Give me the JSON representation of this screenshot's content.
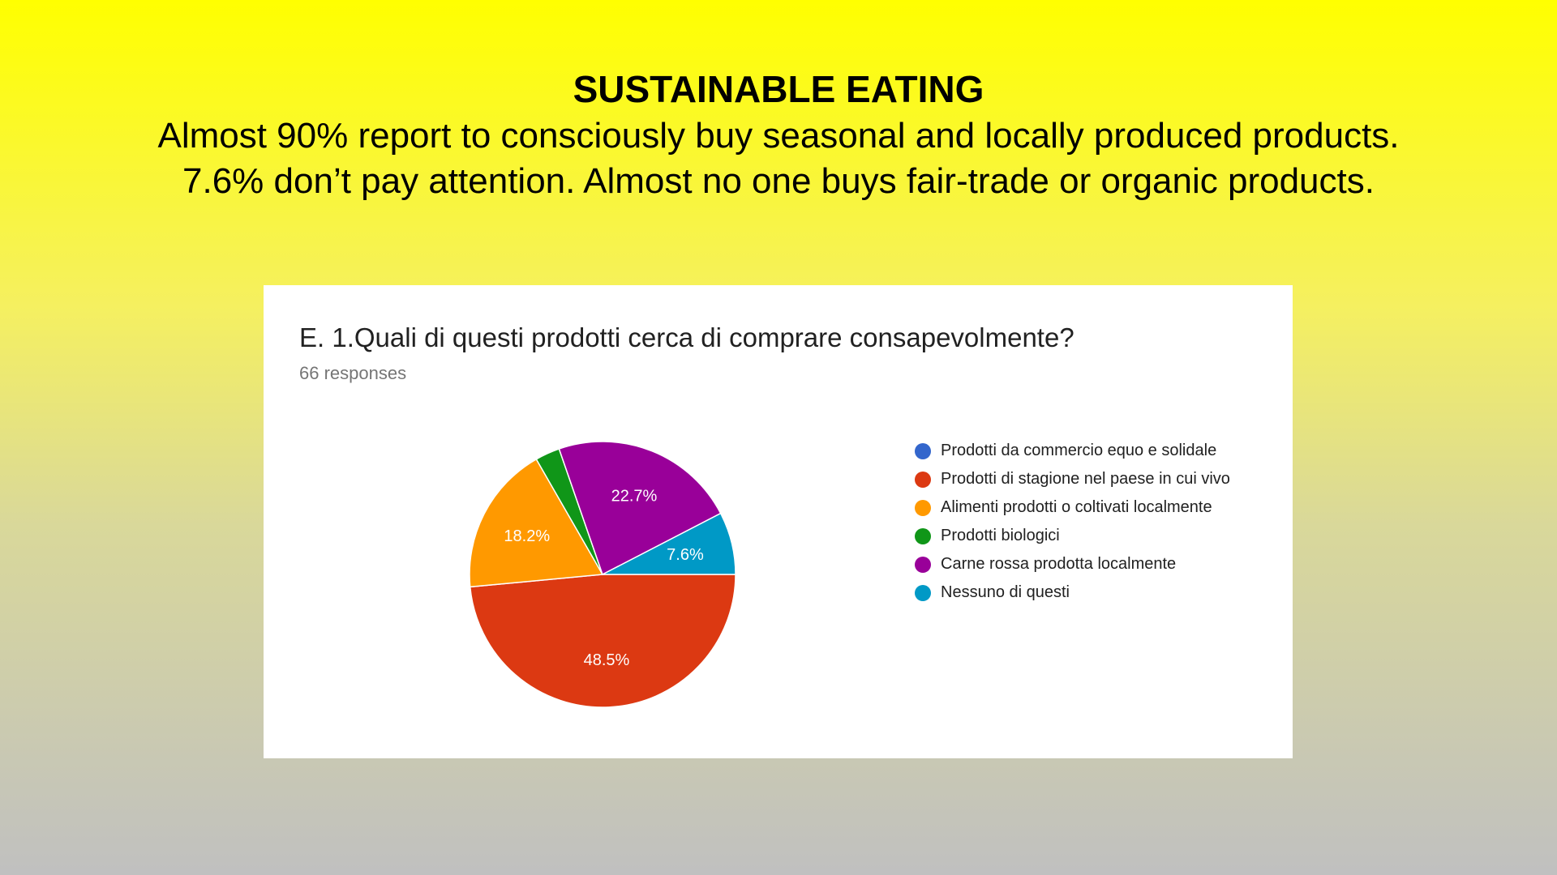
{
  "slide": {
    "title": "SUSTAINABLE EATING",
    "subtitle_line1": "Almost 90% report to consciously buy seasonal and locally produced products.",
    "subtitle_line2": "7.6% don’t pay attention. Almost no one buys fair-trade or organic products."
  },
  "form": {
    "question": "E. 1.Quali di questi prodotti cerca di comprare consapevolmente?",
    "responses": "66 responses"
  },
  "chart_data": {
    "type": "pie",
    "categories": [
      "Prodotti da commercio equo e solidale",
      "Prodotti di stagione nel paese in cui vivo",
      "Alimenti prodotti o coltivati localmente",
      "Prodotti biologici",
      "Carne rossa prodotta localmente",
      "Nessuno di questi"
    ],
    "values": [
      0,
      48.5,
      18.2,
      3.0,
      22.7,
      7.6
    ],
    "labels": [
      "",
      "48.5%",
      "18.2%",
      "",
      "22.7%",
      "7.6%"
    ],
    "colors": [
      "#3366cc",
      "#dc3912",
      "#ff9900",
      "#109618",
      "#990099",
      "#0099c6"
    ],
    "legend_position": "right"
  }
}
